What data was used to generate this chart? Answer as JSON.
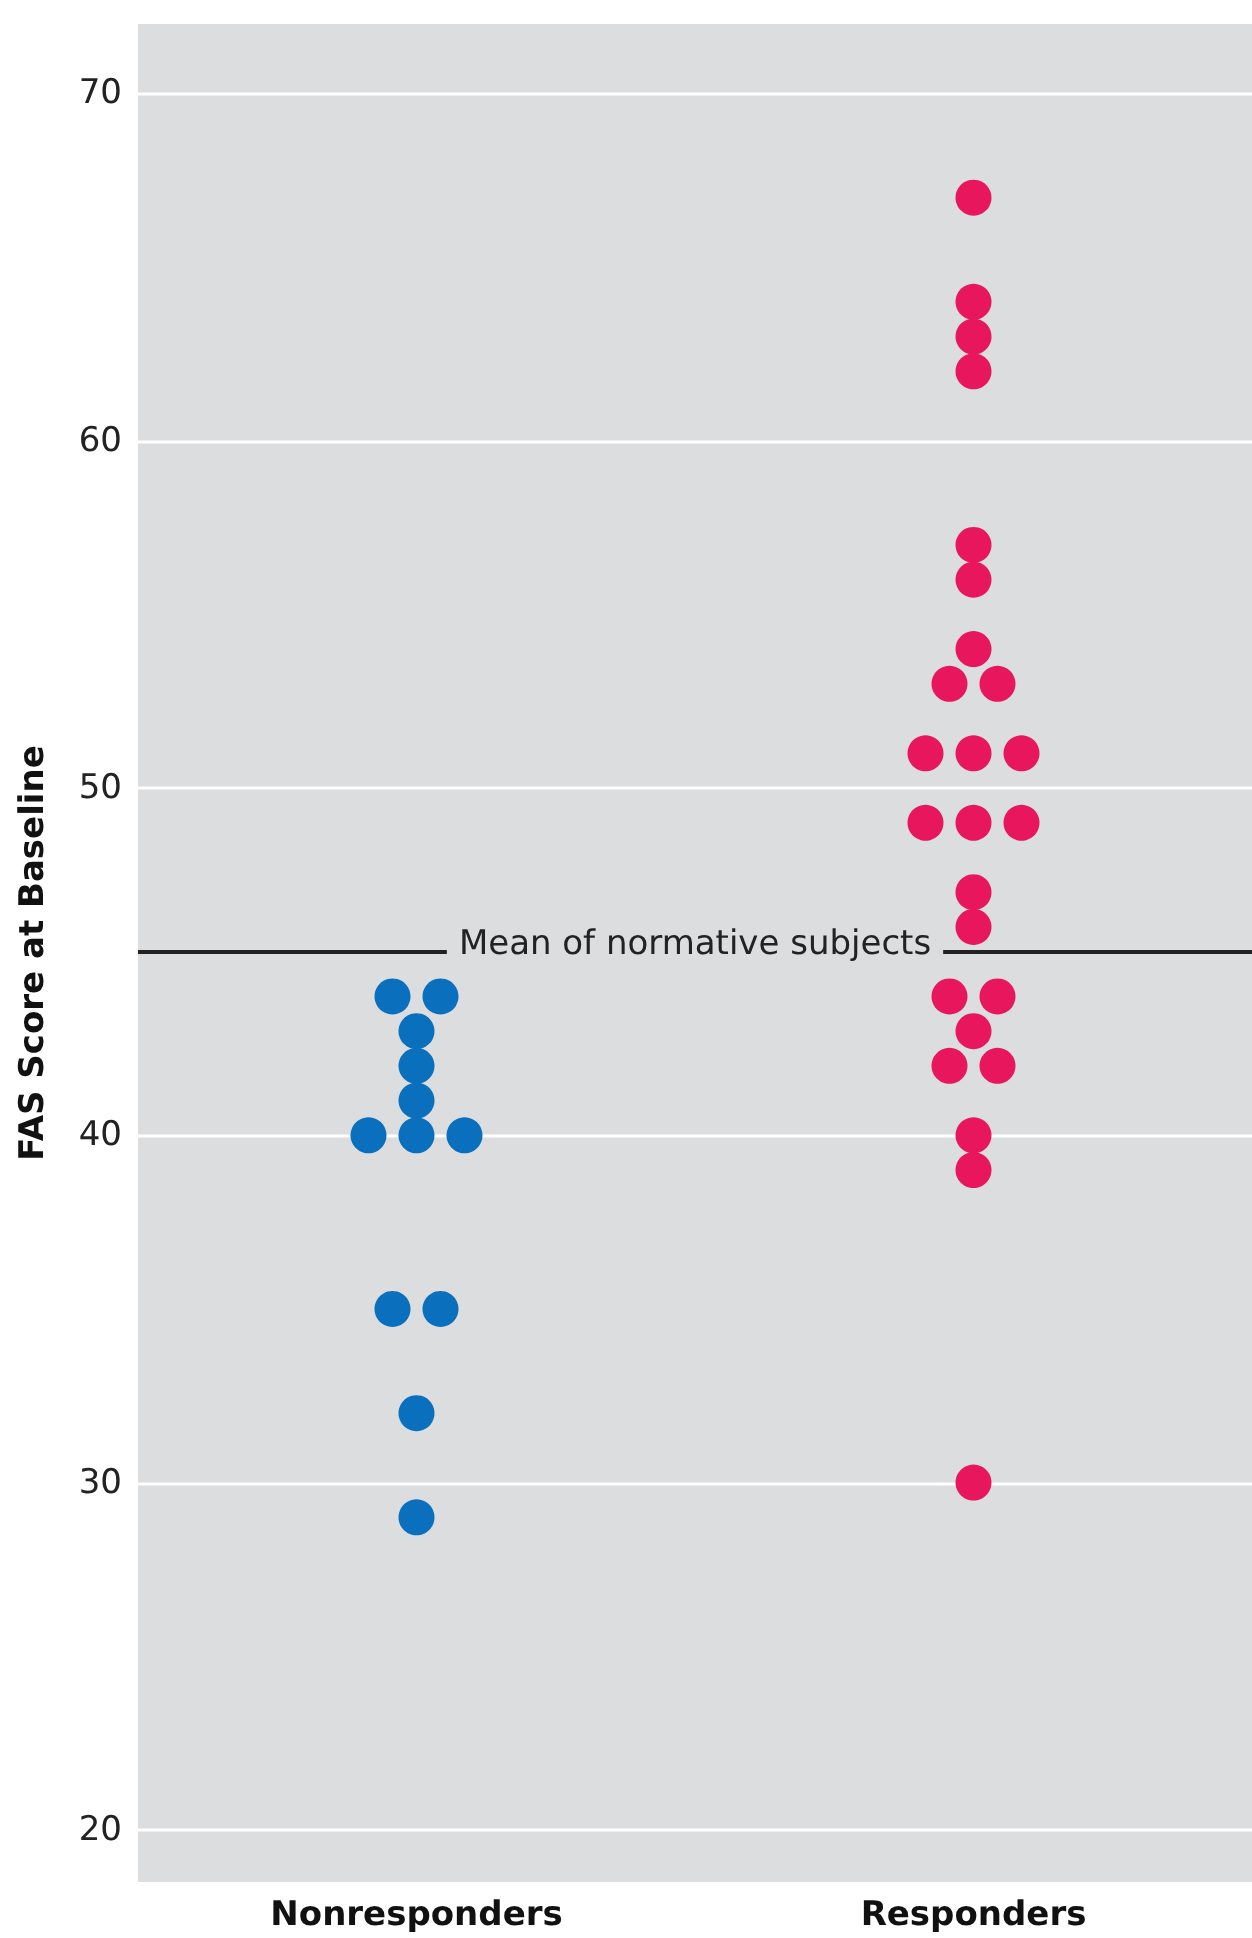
{
  "chart_data": {
    "type": "scatter",
    "ylabel": "FAS Score at Baseline",
    "categories": [
      "Nonresponders",
      "Responders"
    ],
    "series": [
      {
        "color": "#0a6fbd",
        "x": [
          "Nonresponders",
          "Nonresponders",
          "Nonresponders",
          "Nonresponders",
          "Nonresponders",
          "Nonresponders",
          "Nonresponders",
          "Nonresponders",
          "Nonresponders",
          "Nonresponders",
          "Nonresponders",
          "Nonresponders"
        ],
        "values": [
          44,
          44,
          43,
          42,
          41,
          40,
          40,
          40,
          35,
          35,
          32,
          29
        ]
      },
      {
        "color": "#e8175d",
        "x": [
          "Responders",
          "Responders",
          "Responders",
          "Responders",
          "Responders",
          "Responders",
          "Responders",
          "Responders",
          "Responders",
          "Responders",
          "Responders",
          "Responders",
          "Responders",
          "Responders",
          "Responders",
          "Responders",
          "Responders",
          "Responders",
          "Responders",
          "Responders",
          "Responders",
          "Responders",
          "Responders",
          "Responders",
          "Responders"
        ],
        "values": [
          67,
          64,
          63,
          62,
          57,
          56,
          54,
          53,
          53,
          51,
          51,
          51,
          49,
          49,
          49,
          47,
          46,
          44,
          44,
          43,
          42,
          42,
          40,
          39,
          30
        ]
      }
    ],
    "ylim": [
      18.5,
      72
    ],
    "yticks": [
      20,
      30,
      40,
      50,
      60,
      70
    ],
    "grid": "y",
    "marker": "circle",
    "ref_lines": [
      {
        "axis": "y",
        "value": 45.3,
        "label": "Mean of normative subjects",
        "color": "#222222"
      }
    ]
  }
}
